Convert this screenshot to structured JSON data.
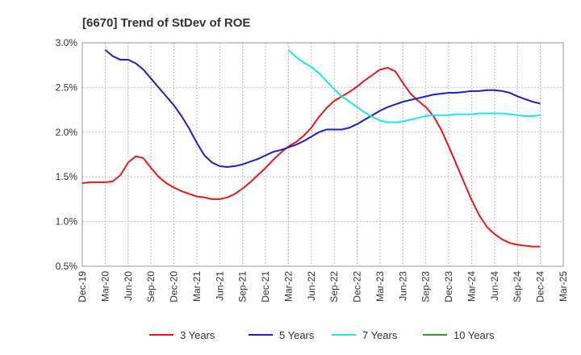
{
  "chart_data": {
    "type": "line",
    "title": "[6670]  Trend of StDev of ROE",
    "xlabel": "",
    "ylabel": "",
    "x_ticks": [
      "Dec-19",
      "Mar-20",
      "Jun-20",
      "Sep-20",
      "Dec-20",
      "Mar-21",
      "Jun-21",
      "Sep-21",
      "Dec-21",
      "Mar-22",
      "Jun-22",
      "Sep-22",
      "Dec-22",
      "Mar-23",
      "Jun-23",
      "Sep-23",
      "Dec-23",
      "Mar-24",
      "Jun-24",
      "Sep-24",
      "Dec-24",
      "Mar-25"
    ],
    "y_ticks": [
      "0.5%",
      "1.0%",
      "1.5%",
      "2.0%",
      "2.5%",
      "3.0%"
    ],
    "ylim": [
      0.5,
      3.0
    ],
    "grid": true,
    "legend_position": "bottom",
    "series": [
      {
        "name": "3 Years",
        "color": "#e31a1c",
        "x": [
          0,
          1,
          2,
          3,
          4,
          5,
          6,
          7,
          8,
          9,
          10,
          11,
          12,
          13,
          14,
          15,
          16,
          17,
          18,
          19,
          20,
          21,
          22,
          23,
          24,
          25,
          26,
          27,
          28,
          29,
          30,
          31,
          32,
          33,
          34,
          35,
          36,
          37,
          38,
          39,
          40,
          41,
          42,
          43,
          44,
          45,
          46,
          47,
          48,
          49,
          50,
          51,
          52,
          53,
          54,
          55,
          56,
          57,
          58,
          59,
          60
        ],
        "values": [
          1.43,
          1.44,
          1.44,
          1.44,
          1.45,
          1.52,
          1.66,
          1.73,
          1.71,
          1.6,
          1.5,
          1.43,
          1.38,
          1.34,
          1.31,
          1.28,
          1.27,
          1.25,
          1.25,
          1.27,
          1.31,
          1.37,
          1.44,
          1.52,
          1.6,
          1.69,
          1.77,
          1.84,
          1.89,
          1.96,
          2.05,
          2.17,
          2.27,
          2.35,
          2.4,
          2.45,
          2.51,
          2.58,
          2.64,
          2.7,
          2.72,
          2.68,
          2.55,
          2.43,
          2.35,
          2.28,
          2.18,
          2.03,
          1.84,
          1.64,
          1.44,
          1.24,
          1.07,
          0.94,
          0.86,
          0.8,
          0.76,
          0.74,
          0.73,
          0.72,
          0.72
        ]
      },
      {
        "name": "5 Years",
        "color": "#1f1fbf",
        "x": [
          3,
          4,
          5,
          6,
          7,
          8,
          9,
          10,
          11,
          12,
          13,
          14,
          15,
          16,
          17,
          18,
          19,
          20,
          21,
          22,
          23,
          24,
          25,
          26,
          27,
          28,
          29,
          30,
          31,
          32,
          33,
          34,
          35,
          36,
          37,
          38,
          39,
          40,
          41,
          42,
          43,
          44,
          45,
          46,
          47,
          48,
          49,
          50,
          51,
          52,
          53,
          54,
          55,
          56,
          57,
          58,
          59,
          60
        ],
        "values": [
          2.92,
          2.85,
          2.81,
          2.81,
          2.77,
          2.7,
          2.6,
          2.5,
          2.4,
          2.3,
          2.18,
          2.04,
          1.88,
          1.74,
          1.66,
          1.62,
          1.61,
          1.62,
          1.64,
          1.67,
          1.7,
          1.74,
          1.78,
          1.8,
          1.83,
          1.86,
          1.9,
          1.95,
          2.0,
          2.03,
          2.03,
          2.03,
          2.05,
          2.09,
          2.14,
          2.19,
          2.24,
          2.28,
          2.31,
          2.34,
          2.36,
          2.38,
          2.4,
          2.42,
          2.43,
          2.44,
          2.44,
          2.45,
          2.46,
          2.46,
          2.47,
          2.47,
          2.46,
          2.44,
          2.4,
          2.37,
          2.34,
          2.32
        ]
      },
      {
        "name": "7 Years",
        "color": "#22e5e5",
        "x": [
          27,
          28,
          29,
          30,
          31,
          32,
          33,
          34,
          35,
          36,
          37,
          38,
          39,
          40,
          41,
          42,
          43,
          44,
          45,
          46,
          47,
          48,
          49,
          50,
          51,
          52,
          53,
          54,
          55,
          56,
          57,
          58,
          59,
          60
        ],
        "values": [
          2.92,
          2.84,
          2.78,
          2.73,
          2.66,
          2.57,
          2.48,
          2.4,
          2.34,
          2.28,
          2.22,
          2.17,
          2.13,
          2.11,
          2.11,
          2.12,
          2.14,
          2.16,
          2.18,
          2.19,
          2.19,
          2.19,
          2.2,
          2.2,
          2.2,
          2.21,
          2.21,
          2.21,
          2.21,
          2.2,
          2.19,
          2.18,
          2.18,
          2.19
        ]
      },
      {
        "name": "10 Years",
        "color": "#2ca02c",
        "x": [],
        "values": []
      }
    ]
  }
}
